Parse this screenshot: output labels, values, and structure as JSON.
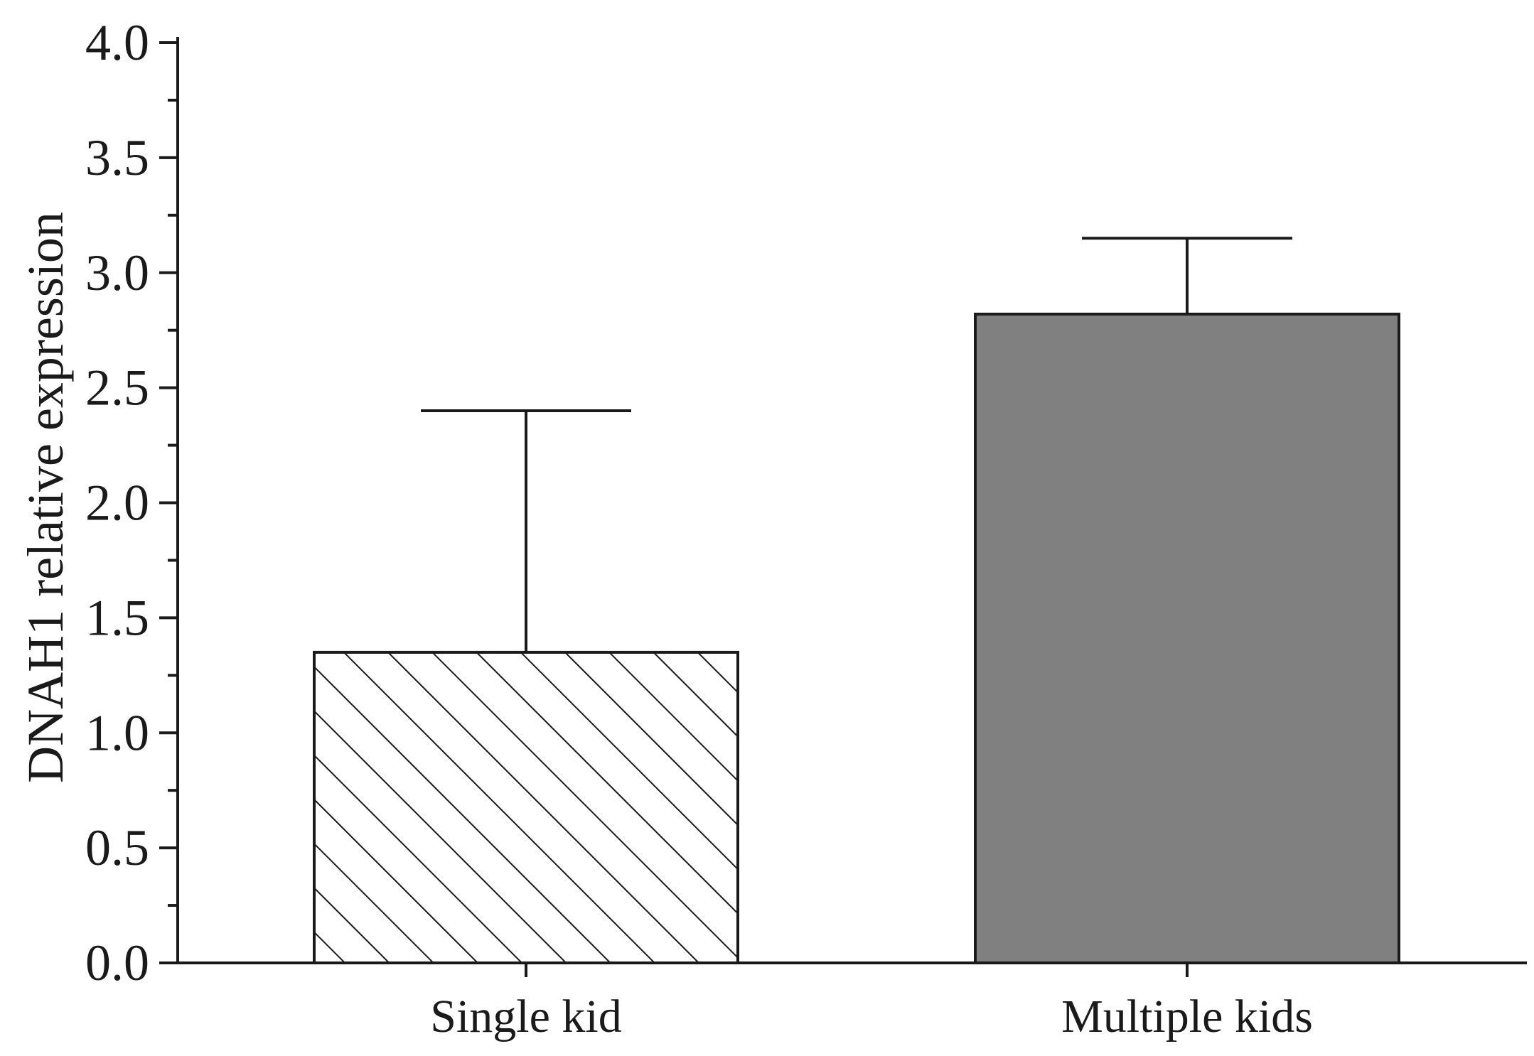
{
  "chart_data": {
    "type": "bar",
    "title": "",
    "xlabel": "",
    "ylabel": "DNAH1 relative expression",
    "categories": [
      "Single kid",
      "Multiple kids"
    ],
    "values": [
      1.35,
      2.82
    ],
    "error_upper": [
      2.4,
      3.15
    ],
    "bar_styles": [
      "hatched",
      "solid"
    ],
    "bar_colors": [
      "#ffffff",
      "#808080"
    ],
    "edge_color": "#1a1a1a",
    "ylim": [
      0,
      4.0
    ],
    "y_major_ticks": [
      0.0,
      0.5,
      1.0,
      1.5,
      2.0,
      2.5,
      3.0,
      3.5,
      4.0
    ],
    "y_minor_step": 0.25,
    "grid": false,
    "legend": "none"
  }
}
